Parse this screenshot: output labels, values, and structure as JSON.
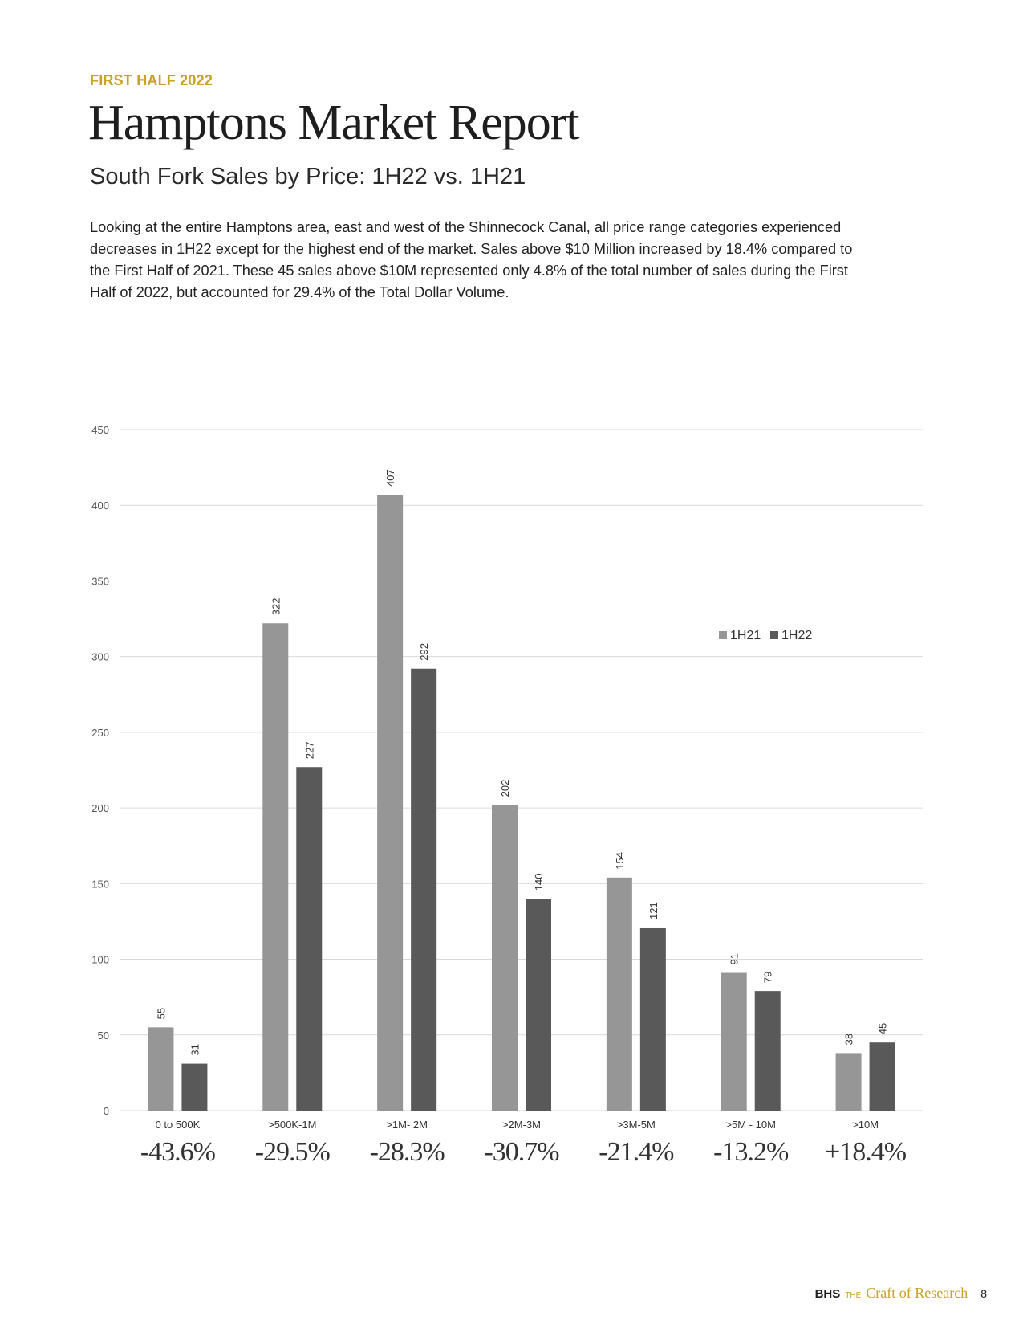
{
  "header": {
    "eyebrow": "FIRST HALF 2022",
    "title": "Hamptons Market Report",
    "subtitle": "South Fork Sales by Price: 1H22 vs. 1H21"
  },
  "body": {
    "paragraph": "Looking at the entire Hamptons area, east and west of the Shinnecock Canal, all price range categories experienced decreases in 1H22 except for the highest end of the market. Sales above $10 Million increased by 18.4% compared to the First Half of 2021. These 45 sales above $10M represented only 4.8% of the total number of sales during the First Half of 2022, but accounted for 29.4% of the Total Dollar Volume."
  },
  "chart_data": {
    "type": "bar",
    "categories": [
      "0 to 500K",
      ">500K-1M",
      ">1M- 2M",
      ">2M-3M",
      ">3M-5M",
      ">5M - 10M",
      ">10M"
    ],
    "series": [
      {
        "name": "1H21",
        "values": [
          55,
          322,
          407,
          202,
          154,
          91,
          38
        ],
        "color": "#969696"
      },
      {
        "name": "1H22",
        "values": [
          31,
          227,
          292,
          140,
          121,
          79,
          45
        ],
        "color": "#595959"
      }
    ],
    "ylim": [
      0,
      450
    ],
    "yticks": [
      0,
      50,
      100,
      150,
      200,
      250,
      300,
      350,
      400,
      450
    ],
    "grid": true,
    "legend": "right",
    "percent_changes": [
      "-43.6%",
      "-29.5%",
      "-28.3%",
      "-30.7%",
      "-21.4%",
      "-13.2%",
      "+18.4%"
    ]
  },
  "footer": {
    "brand": "BHS",
    "the": "THE",
    "tagline": "Craft of Research",
    "page_number": "8"
  }
}
